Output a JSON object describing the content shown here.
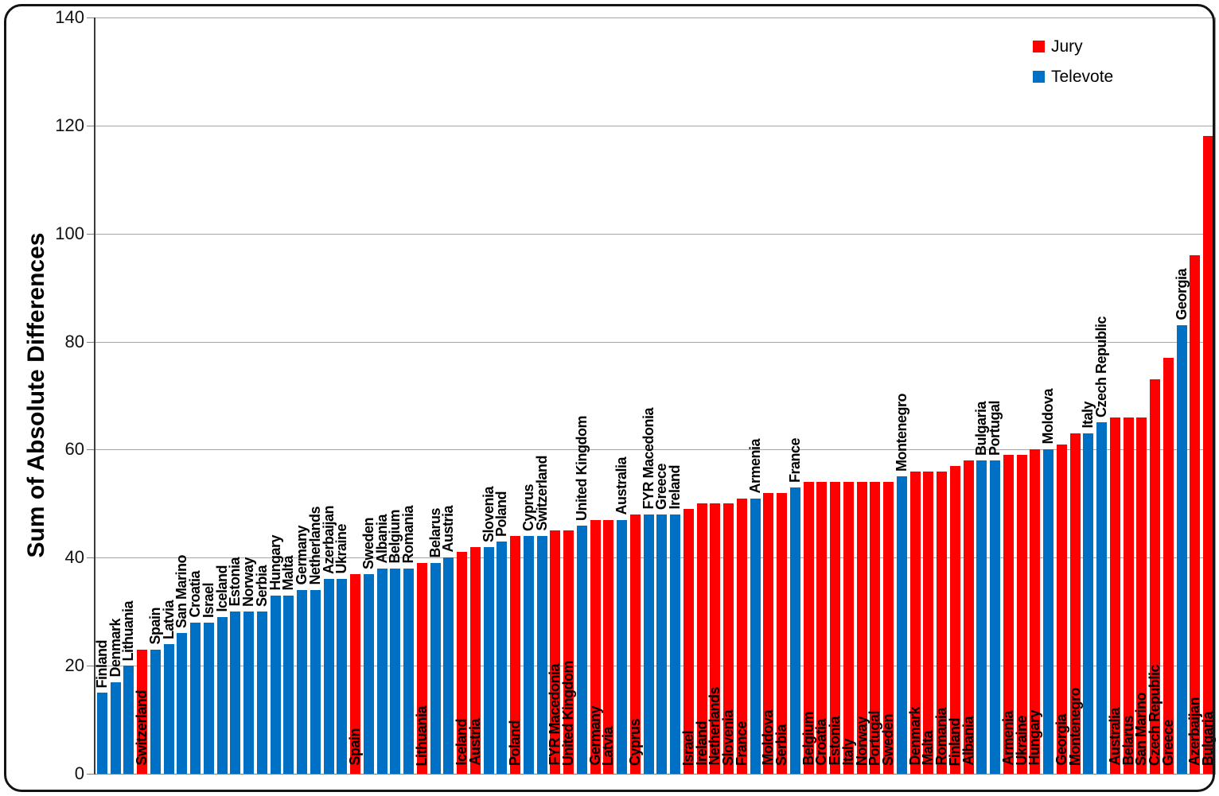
{
  "chart_data": {
    "type": "bar",
    "title": "",
    "xlabel": "",
    "ylabel": "Sum of Absolute Differences",
    "ylim": [
      0,
      140
    ],
    "yticks": [
      0,
      20,
      40,
      60,
      80,
      100,
      120,
      140
    ],
    "grid": "horizontal",
    "legend_position": "top-right",
    "series_colors": {
      "Jury": "#FF0000",
      "Televote": "#0070C5"
    },
    "legend": [
      {
        "label": "Jury",
        "color": "#FF0000"
      },
      {
        "label": "Televote",
        "color": "#0070C5"
      }
    ],
    "label_rule": "Televote labels above bar, Jury labels inside bar bottom",
    "bars": [
      {
        "country": "Finland",
        "vote": "Televote",
        "value": 15
      },
      {
        "country": "Denmark",
        "vote": "Televote",
        "value": 17
      },
      {
        "country": "Lithuania",
        "vote": "Televote",
        "value": 20
      },
      {
        "country": "Switzerland",
        "vote": "Jury",
        "value": 23
      },
      {
        "country": "Spain",
        "vote": "Televote",
        "value": 23
      },
      {
        "country": "Latvia",
        "vote": "Televote",
        "value": 24
      },
      {
        "country": "San Marino",
        "vote": "Televote",
        "value": 26
      },
      {
        "country": "Croatia",
        "vote": "Televote",
        "value": 28
      },
      {
        "country": "Israel",
        "vote": "Televote",
        "value": 28
      },
      {
        "country": "Iceland",
        "vote": "Televote",
        "value": 29
      },
      {
        "country": "Estonia",
        "vote": "Televote",
        "value": 30
      },
      {
        "country": "Norway",
        "vote": "Televote",
        "value": 30
      },
      {
        "country": "Serbia",
        "vote": "Televote",
        "value": 30
      },
      {
        "country": "Hungary",
        "vote": "Televote",
        "value": 33
      },
      {
        "country": "Malta",
        "vote": "Televote",
        "value": 33
      },
      {
        "country": "Germany",
        "vote": "Televote",
        "value": 34
      },
      {
        "country": "Netherlands",
        "vote": "Televote",
        "value": 34
      },
      {
        "country": "Azerbaijan",
        "vote": "Televote",
        "value": 36
      },
      {
        "country": "Ukraine",
        "vote": "Televote",
        "value": 36
      },
      {
        "country": "Spain",
        "vote": "Jury",
        "value": 37
      },
      {
        "country": "Sweden",
        "vote": "Televote",
        "value": 37
      },
      {
        "country": "Albania",
        "vote": "Televote",
        "value": 38
      },
      {
        "country": "Belgium",
        "vote": "Televote",
        "value": 38
      },
      {
        "country": "Romania",
        "vote": "Televote",
        "value": 38
      },
      {
        "country": "Lithuania",
        "vote": "Jury",
        "value": 39
      },
      {
        "country": "Belarus",
        "vote": "Televote",
        "value": 39
      },
      {
        "country": "Austria",
        "vote": "Televote",
        "value": 40
      },
      {
        "country": "Iceland",
        "vote": "Jury",
        "value": 41
      },
      {
        "country": "Austria",
        "vote": "Jury",
        "value": 42
      },
      {
        "country": "Slovenia",
        "vote": "Televote",
        "value": 42
      },
      {
        "country": "Poland",
        "vote": "Televote",
        "value": 43
      },
      {
        "country": "Poland",
        "vote": "Jury",
        "value": 44
      },
      {
        "country": "Cyprus",
        "vote": "Televote",
        "value": 44
      },
      {
        "country": "Switzerland",
        "vote": "Televote",
        "value": 44
      },
      {
        "country": "FYR Macedonia",
        "vote": "Jury",
        "value": 45
      },
      {
        "country": "United Kingdom",
        "vote": "Jury",
        "value": 45
      },
      {
        "country": "United Kingdom",
        "vote": "Televote",
        "value": 46
      },
      {
        "country": "Germany",
        "vote": "Jury",
        "value": 47
      },
      {
        "country": "Latvia",
        "vote": "Jury",
        "value": 47
      },
      {
        "country": "Australia",
        "vote": "Televote",
        "value": 47
      },
      {
        "country": "Cyprus",
        "vote": "Jury",
        "value": 48
      },
      {
        "country": "FYR Macedonia",
        "vote": "Televote",
        "value": 48
      },
      {
        "country": "Greece",
        "vote": "Televote",
        "value": 48
      },
      {
        "country": "Ireland",
        "vote": "Televote",
        "value": 48
      },
      {
        "country": "Israel",
        "vote": "Jury",
        "value": 49
      },
      {
        "country": "Ireland",
        "vote": "Jury",
        "value": 50
      },
      {
        "country": "Netherlands",
        "vote": "Jury",
        "value": 50
      },
      {
        "country": "Slovenia",
        "vote": "Jury",
        "value": 50
      },
      {
        "country": "France",
        "vote": "Jury",
        "value": 51
      },
      {
        "country": "Armenia",
        "vote": "Televote",
        "value": 51
      },
      {
        "country": "Moldova",
        "vote": "Jury",
        "value": 52
      },
      {
        "country": "Serbia",
        "vote": "Jury",
        "value": 52
      },
      {
        "country": "France",
        "vote": "Televote",
        "value": 53
      },
      {
        "country": "Belgium",
        "vote": "Jury",
        "value": 54
      },
      {
        "country": "Croatia",
        "vote": "Jury",
        "value": 54
      },
      {
        "country": "Estonia",
        "vote": "Jury",
        "value": 54
      },
      {
        "country": "Italy",
        "vote": "Jury",
        "value": 54
      },
      {
        "country": "Norway",
        "vote": "Jury",
        "value": 54
      },
      {
        "country": "Portugal",
        "vote": "Jury",
        "value": 54
      },
      {
        "country": "Sweden",
        "vote": "Jury",
        "value": 54
      },
      {
        "country": "Montenegro",
        "vote": "Televote",
        "value": 55
      },
      {
        "country": "Denmark",
        "vote": "Jury",
        "value": 56
      },
      {
        "country": "Malta",
        "vote": "Jury",
        "value": 56
      },
      {
        "country": "Romania",
        "vote": "Jury",
        "value": 56
      },
      {
        "country": "Finland",
        "vote": "Jury",
        "value": 57
      },
      {
        "country": "Albania",
        "vote": "Jury",
        "value": 58
      },
      {
        "country": "Bulgaria",
        "vote": "Televote",
        "value": 58
      },
      {
        "country": "Portugal",
        "vote": "Televote",
        "value": 58
      },
      {
        "country": "Armenia",
        "vote": "Jury",
        "value": 59
      },
      {
        "country": "Ukraine",
        "vote": "Jury",
        "value": 59
      },
      {
        "country": "Hungary",
        "vote": "Jury",
        "value": 60
      },
      {
        "country": "Moldova",
        "vote": "Televote",
        "value": 60
      },
      {
        "country": "Georgia",
        "vote": "Jury",
        "value": 61
      },
      {
        "country": "Montenegro",
        "vote": "Jury",
        "value": 63
      },
      {
        "country": "Italy",
        "vote": "Televote",
        "value": 63
      },
      {
        "country": "Czech Republic",
        "vote": "Televote",
        "value": 65
      },
      {
        "country": "Australia",
        "vote": "Jury",
        "value": 66
      },
      {
        "country": "Belarus",
        "vote": "Jury",
        "value": 66
      },
      {
        "country": "San Marino",
        "vote": "Jury",
        "value": 66
      },
      {
        "country": "Czech Republic",
        "vote": "Jury",
        "value": 73
      },
      {
        "country": "Greece",
        "vote": "Jury",
        "value": 77
      },
      {
        "country": "Georgia",
        "vote": "Televote",
        "value": 83
      },
      {
        "country": "Azerbaijan",
        "vote": "Jury",
        "value": 96
      },
      {
        "country": "Bulgaria",
        "vote": "Jury",
        "value": 118
      }
    ]
  }
}
